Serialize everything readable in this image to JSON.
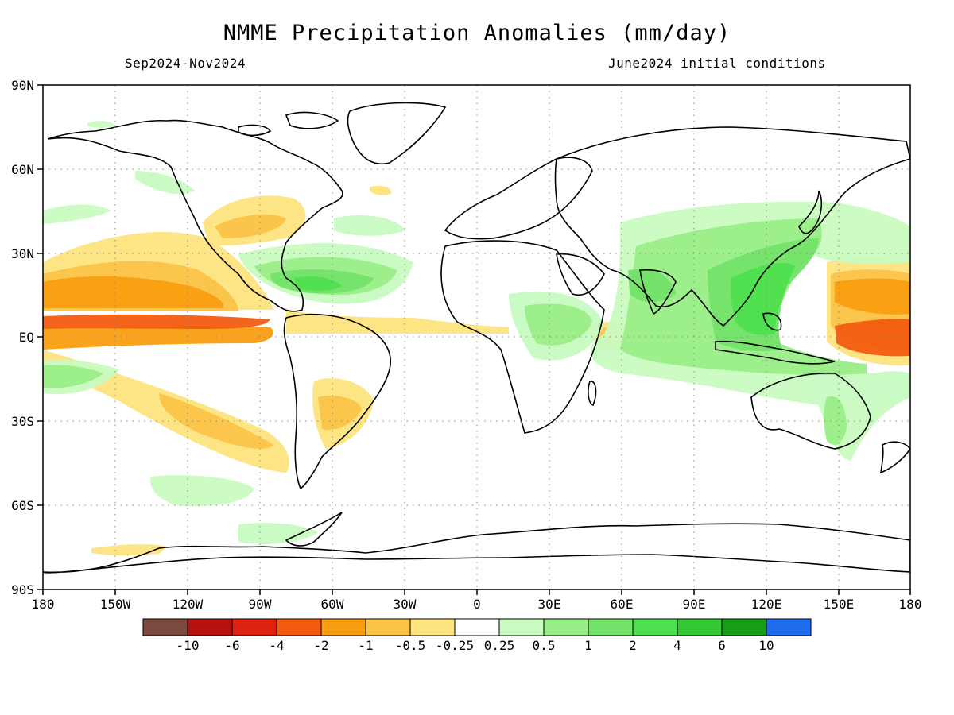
{
  "title": "NMME Precipitation Anomalies (mm/day)",
  "period": "Sep2024-Nov2024",
  "initial_conditions": "June2024 initial conditions",
  "lat_labels": [
    "90N",
    "60N",
    "30N",
    "EQ",
    "30S",
    "60S",
    "90S"
  ],
  "lon_labels": [
    "180",
    "150W",
    "120W",
    "90W",
    "60W",
    "30W",
    "0",
    "30E",
    "60E",
    "90E",
    "120E",
    "150E",
    "180"
  ],
  "colorbar": {
    "colors": [
      "#7a4a3e",
      "#b80f0f",
      "#dd2211",
      "#f35c10",
      "#f99e10",
      "#fbc448",
      "#fde47f",
      "#ffffff",
      "#c9fbc1",
      "#99ee88",
      "#73e26a",
      "#4fe04f",
      "#34c834",
      "#169f16",
      "#1f6ded"
    ],
    "labels": [
      "-10",
      "-6",
      "-4",
      "-2",
      "-1",
      "-0.5",
      "-0.25",
      "0.25",
      "0.5",
      "1",
      "2",
      "4",
      "6",
      "10"
    ]
  }
}
